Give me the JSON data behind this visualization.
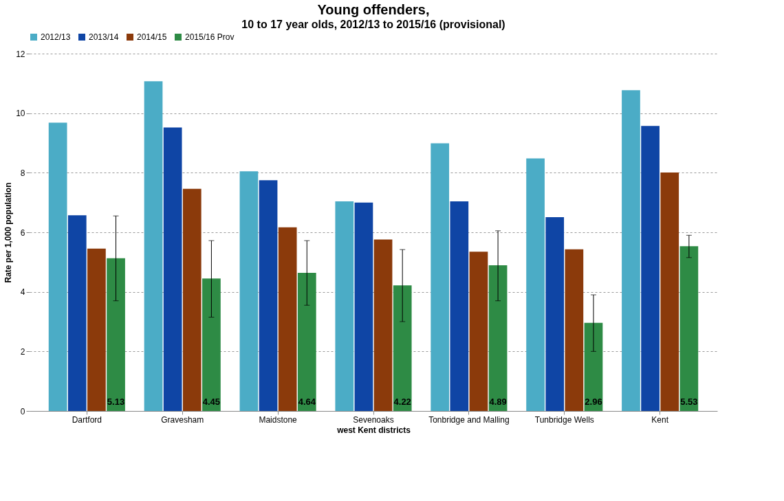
{
  "chart_data": {
    "type": "bar",
    "title": "Young offenders,",
    "subtitle": "10 to 17 year olds, 2012/13 to 2015/16 (provisional)",
    "xlabel": "west Kent districts",
    "ylabel": "Rate per 1,000 population",
    "categories": [
      "Dartford",
      "Gravesham",
      "Maidstone",
      "Sevenoaks",
      "Tonbridge and Malling",
      "Tunbridge Wells",
      "Kent"
    ],
    "series": [
      {
        "name": "2012/13",
        "color": "#4bacc6",
        "values": [
          9.68,
          11.07,
          8.05,
          7.04,
          8.99,
          8.48,
          10.77
        ]
      },
      {
        "name": "2013/14",
        "color": "#0f45a5",
        "values": [
          6.57,
          9.52,
          7.75,
          7.0,
          7.04,
          6.51,
          9.57
        ]
      },
      {
        "name": "2014/15",
        "color": "#8b3a0b",
        "values": [
          5.45,
          7.46,
          6.17,
          5.76,
          5.35,
          5.43,
          8.01
        ]
      },
      {
        "name": "2015/16 Prov",
        "color": "#2e8b45",
        "values": [
          5.13,
          4.45,
          4.64,
          4.22,
          4.89,
          2.96,
          5.53
        ],
        "errors": [
          [
            3.7,
            6.55
          ],
          [
            3.15,
            5.72
          ],
          [
            3.55,
            5.72
          ],
          [
            3.0,
            5.42
          ],
          [
            3.7,
            6.05
          ],
          [
            2.0,
            3.9
          ],
          [
            5.15,
            5.9
          ]
        ],
        "value_labels": [
          "5.13",
          "4.45",
          "4.64",
          "4.22",
          "4.89",
          "2.96",
          "5.53"
        ]
      }
    ],
    "ylim": [
      0,
      12
    ],
    "yticks": [
      0,
      2,
      4,
      6,
      8,
      10,
      12
    ],
    "grid": "y",
    "legend": "top"
  }
}
